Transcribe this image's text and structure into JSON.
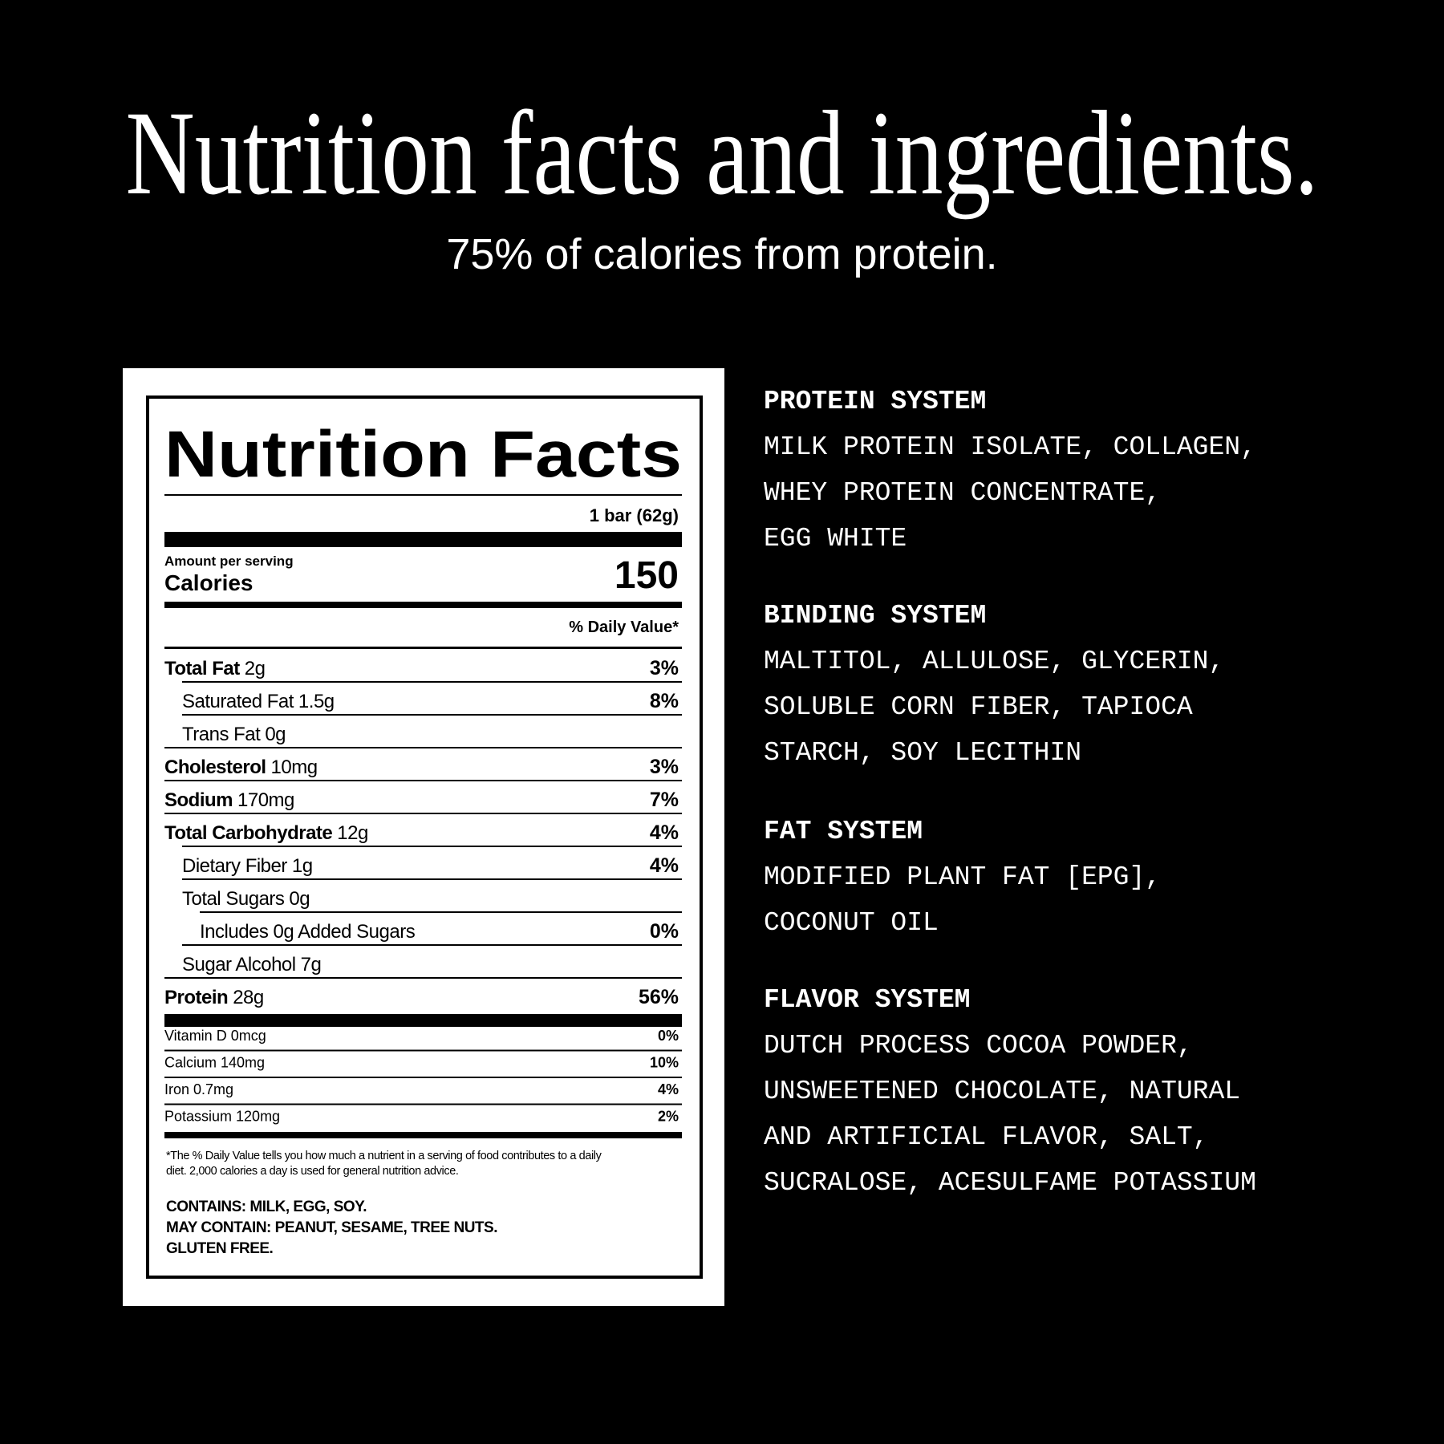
{
  "header": {
    "title": "Nutrition facts and ingredients.",
    "subtitle": "75% of calories from protein."
  },
  "label": {
    "title": "Nutrition Facts",
    "serving": "1 bar (62g)",
    "amount_per_serving": "Amount per serving",
    "calories_label": "Calories",
    "calories": "150",
    "daily_value_header": "% Daily Value*",
    "rows": [
      {
        "name": "Total Fat",
        "amount": "2g",
        "dv": "3%"
      },
      {
        "name": "Saturated Fat",
        "amount": "1.5g",
        "dv": "8%"
      },
      {
        "name": "Trans Fat",
        "amount": "0g"
      },
      {
        "name": "Cholesterol",
        "amount": "10mg",
        "dv": "3%"
      },
      {
        "name": "Sodium",
        "amount": "170mg",
        "dv": "7%"
      },
      {
        "name": "Total Carbohydrate",
        "amount": "12g",
        "dv": "4%"
      },
      {
        "name": "Dietary Fiber",
        "amount": "1g",
        "dv": "4%"
      },
      {
        "name": "Total Sugars",
        "amount": "0g"
      },
      {
        "name": "Includes 0g Added Sugars",
        "dv": "0%"
      },
      {
        "name": "Sugar Alcohol",
        "amount": "7g"
      },
      {
        "name": "Protein",
        "amount": "28g",
        "dv": "56%"
      }
    ],
    "vitamins": [
      {
        "name": "Vitamin D 0mcg",
        "dv": "0%"
      },
      {
        "name": "Calcium 140mg",
        "dv": "10%"
      },
      {
        "name": "Iron 0.7mg",
        "dv": "4%"
      },
      {
        "name": "Potassium 120mg",
        "dv": "2%"
      }
    ],
    "footnote": [
      "*The % Daily Value tells you how much a nutrient in a serving of food contributes to a daily",
      "diet. 2,000 calories a day is used for general nutrition advice."
    ],
    "allergens": [
      "CONTAINS: MILK, EGG, SOY.",
      "MAY CONTAIN: PEANUT, SESAME, TREE NUTS.",
      "GLUTEN FREE."
    ]
  },
  "ingredients": [
    {
      "heading": "PROTEIN SYSTEM",
      "lines": [
        "MILK PROTEIN ISOLATE, COLLAGEN,",
        "WHEY PROTEIN CONCENTRATE,",
        "EGG WHITE"
      ]
    },
    {
      "heading": "BINDING SYSTEM",
      "lines": [
        "MALTITOL, ALLULOSE, GLYCERIN,",
        "SOLUBLE CORN FIBER, TAPIOCA",
        "STARCH, SOY LECITHIN"
      ]
    },
    {
      "heading": "FAT SYSTEM",
      "lines": [
        "MODIFIED PLANT FAT [EPG],",
        "COCONUT OIL"
      ]
    },
    {
      "heading": "FLAVOR SYSTEM",
      "lines": [
        "DUTCH PROCESS COCOA POWDER,",
        "UNSWEETENED CHOCOLATE, NATURAL",
        "AND ARTIFICIAL FLAVOR, SALT,",
        "SUCRALOSE, ACESULFAME POTASSIUM"
      ]
    }
  ]
}
